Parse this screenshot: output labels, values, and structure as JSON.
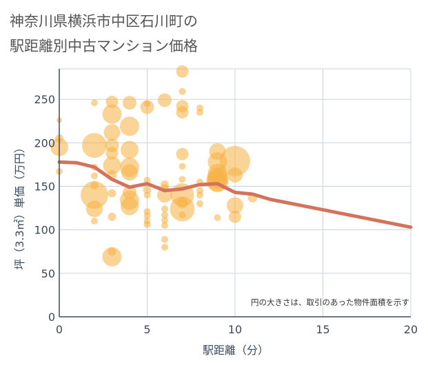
{
  "chart_data": {
    "type": "scatter",
    "title_lines": [
      "神奈川県横浜市中区石川町の",
      "駅距離別中古マンション価格"
    ],
    "xlabel": "駅距離（分）",
    "ylabel": "坪（3.3㎡）単価（万円）",
    "xlim": [
      0,
      20
    ],
    "ylim": [
      0,
      285
    ],
    "x_ticks": [
      "0",
      "5",
      "10",
      "15",
      "20"
    ],
    "y_ticks": [
      "0",
      "50",
      "100",
      "150",
      "200",
      "250"
    ],
    "note": "円の大きさは、取引のあった物件面積を示す",
    "grid": true,
    "colors": {
      "bubble": "#f5b041",
      "line": "#d4735b",
      "grid": "#c9d3dc",
      "axis": "#3b4a5a"
    },
    "bubbles": [
      {
        "x": 0,
        "y": 226,
        "s": 4
      },
      {
        "x": 0,
        "y": 205,
        "s": 6
      },
      {
        "x": 0,
        "y": 195,
        "s": 13
      },
      {
        "x": 0,
        "y": 167,
        "s": 5
      },
      {
        "x": 2,
        "y": 246,
        "s": 5
      },
      {
        "x": 2,
        "y": 197,
        "s": 18
      },
      {
        "x": 2,
        "y": 172,
        "s": 5
      },
      {
        "x": 2,
        "y": 162,
        "s": 5
      },
      {
        "x": 2,
        "y": 151,
        "s": 6
      },
      {
        "x": 2,
        "y": 140,
        "s": 20
      },
      {
        "x": 2,
        "y": 124,
        "s": 12
      },
      {
        "x": 2,
        "y": 110,
        "s": 5
      },
      {
        "x": 3,
        "y": 247,
        "s": 9
      },
      {
        "x": 3,
        "y": 233,
        "s": 14
      },
      {
        "x": 3,
        "y": 212,
        "s": 12
      },
      {
        "x": 3,
        "y": 197,
        "s": 10
      },
      {
        "x": 3,
        "y": 188,
        "s": 9
      },
      {
        "x": 3,
        "y": 174,
        "s": 13
      },
      {
        "x": 3,
        "y": 163,
        "s": 7
      },
      {
        "x": 3,
        "y": 142,
        "s": 6
      },
      {
        "x": 3,
        "y": 115,
        "s": 6
      },
      {
        "x": 3,
        "y": 75,
        "s": 6
      },
      {
        "x": 3,
        "y": 69,
        "s": 14
      },
      {
        "x": 4,
        "y": 246,
        "s": 10
      },
      {
        "x": 4,
        "y": 219,
        "s": 14
      },
      {
        "x": 4,
        "y": 192,
        "s": 13
      },
      {
        "x": 4,
        "y": 172,
        "s": 14
      },
      {
        "x": 4,
        "y": 166,
        "s": 12
      },
      {
        "x": 4,
        "y": 143,
        "s": 10
      },
      {
        "x": 4,
        "y": 134,
        "s": 14
      },
      {
        "x": 4,
        "y": 127,
        "s": 13
      },
      {
        "x": 5,
        "y": 245,
        "s": 5
      },
      {
        "x": 5,
        "y": 241,
        "s": 10
      },
      {
        "x": 5,
        "y": 157,
        "s": 5
      },
      {
        "x": 5,
        "y": 146,
        "s": 6
      },
      {
        "x": 5,
        "y": 140,
        "s": 5
      },
      {
        "x": 5,
        "y": 121,
        "s": 5
      },
      {
        "x": 5,
        "y": 116,
        "s": 5
      },
      {
        "x": 5,
        "y": 110,
        "s": 5
      },
      {
        "x": 5,
        "y": 106,
        "s": 5
      },
      {
        "x": 6,
        "y": 249,
        "s": 10
      },
      {
        "x": 6,
        "y": 152,
        "s": 6
      },
      {
        "x": 6,
        "y": 148,
        "s": 6
      },
      {
        "x": 6,
        "y": 140,
        "s": 11
      },
      {
        "x": 6,
        "y": 124,
        "s": 5
      },
      {
        "x": 6,
        "y": 117,
        "s": 5
      },
      {
        "x": 6,
        "y": 111,
        "s": 5
      },
      {
        "x": 6,
        "y": 105,
        "s": 5
      },
      {
        "x": 6,
        "y": 89,
        "s": 5
      },
      {
        "x": 6,
        "y": 80,
        "s": 5
      },
      {
        "x": 7,
        "y": 282,
        "s": 9
      },
      {
        "x": 7,
        "y": 259,
        "s": 5
      },
      {
        "x": 7,
        "y": 242,
        "s": 9
      },
      {
        "x": 7,
        "y": 235,
        "s": 9
      },
      {
        "x": 7,
        "y": 187,
        "s": 9
      },
      {
        "x": 7,
        "y": 173,
        "s": 5
      },
      {
        "x": 7,
        "y": 158,
        "s": 5
      },
      {
        "x": 7,
        "y": 140,
        "s": 17
      },
      {
        "x": 7,
        "y": 131,
        "s": 8
      },
      {
        "x": 7,
        "y": 124,
        "s": 18
      },
      {
        "x": 7,
        "y": 117,
        "s": 5
      },
      {
        "x": 8,
        "y": 240,
        "s": 5
      },
      {
        "x": 8,
        "y": 235,
        "s": 5
      },
      {
        "x": 8,
        "y": 155,
        "s": 5
      },
      {
        "x": 8,
        "y": 145,
        "s": 5
      },
      {
        "x": 8,
        "y": 140,
        "s": 5
      },
      {
        "x": 8,
        "y": 130,
        "s": 5
      },
      {
        "x": 9,
        "y": 190,
        "s": 12
      },
      {
        "x": 9,
        "y": 178,
        "s": 14
      },
      {
        "x": 9,
        "y": 165,
        "s": 14
      },
      {
        "x": 9,
        "y": 160,
        "s": 15
      },
      {
        "x": 9,
        "y": 157,
        "s": 16
      },
      {
        "x": 9,
        "y": 155,
        "s": 15
      },
      {
        "x": 9,
        "y": 114,
        "s": 5
      },
      {
        "x": 10,
        "y": 179,
        "s": 22
      },
      {
        "x": 10,
        "y": 163,
        "s": 11
      },
      {
        "x": 10,
        "y": 128,
        "s": 12
      },
      {
        "x": 10,
        "y": 115,
        "s": 9
      },
      {
        "x": 11,
        "y": 137,
        "s": 7
      }
    ],
    "series": [
      {
        "name": "average",
        "x": [
          0,
          1,
          2,
          3,
          4,
          5,
          6,
          7,
          8,
          9,
          10,
          11,
          12,
          13,
          14,
          15,
          16,
          17,
          18,
          19,
          20
        ],
        "y": [
          178,
          177,
          172,
          158,
          149,
          153,
          145,
          147,
          152,
          153,
          143,
          141,
          135,
          131,
          127,
          123,
          119,
          115,
          111,
          107,
          103
        ]
      }
    ]
  }
}
